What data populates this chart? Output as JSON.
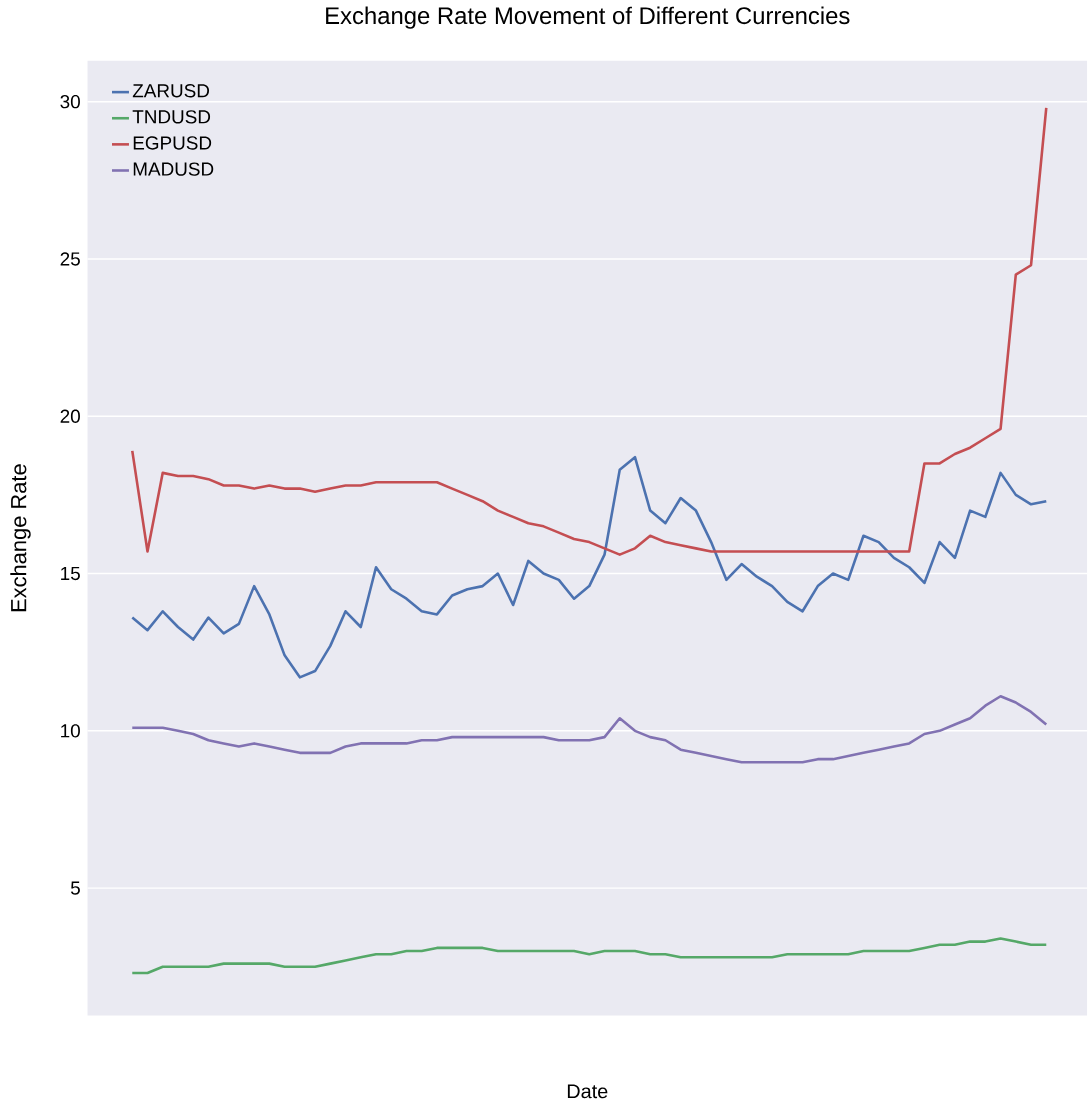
{
  "chart_data": {
    "type": "line",
    "title": "Exchange Rate Movement of Different Currencies",
    "xlabel": "Date",
    "ylabel": "Exchange Rate",
    "categories": [
      null,
      null,
      null,
      null,
      null,
      null,
      null,
      null,
      null,
      null,
      null,
      null,
      null,
      null,
      null,
      null,
      null,
      null,
      null,
      null,
      null,
      null,
      null,
      null,
      null,
      null,
      null,
      null,
      null,
      null,
      null,
      null,
      null,
      null,
      null,
      null,
      null,
      null,
      null,
      null,
      null,
      null,
      null,
      null,
      null,
      null,
      null,
      null,
      null,
      null,
      null,
      null,
      null,
      null,
      null,
      null,
      null,
      null,
      null,
      null,
      null
    ],
    "series": [
      {
        "name": "ZARUSD",
        "color": "#4c72b0",
        "values": [
          13.6,
          13.2,
          13.8,
          13.3,
          12.9,
          13.6,
          13.1,
          13.4,
          14.6,
          13.7,
          12.4,
          11.7,
          11.9,
          12.7,
          13.8,
          13.3,
          15.2,
          14.5,
          14.2,
          13.8,
          13.7,
          14.3,
          14.5,
          14.6,
          15.0,
          14.0,
          15.4,
          15.0,
          14.8,
          14.2,
          14.6,
          15.6,
          18.3,
          18.7,
          17.0,
          16.6,
          17.4,
          17.0,
          16.0,
          14.8,
          15.3,
          14.9,
          14.6,
          14.1,
          13.8,
          14.6,
          15.0,
          14.8,
          16.2,
          16.0,
          15.5,
          15.2,
          14.7,
          16.0,
          15.5,
          17.0,
          16.8,
          18.2,
          17.5,
          17.2,
          17.3
        ]
      },
      {
        "name": "TNDUSD",
        "color": "#55a868",
        "values": [
          2.3,
          2.3,
          2.5,
          2.5,
          2.5,
          2.5,
          2.6,
          2.6,
          2.6,
          2.6,
          2.5,
          2.5,
          2.5,
          2.6,
          2.7,
          2.8,
          2.9,
          2.9,
          3.0,
          3.0,
          3.1,
          3.1,
          3.1,
          3.1,
          3.0,
          3.0,
          3.0,
          3.0,
          3.0,
          3.0,
          2.9,
          3.0,
          3.0,
          3.0,
          2.9,
          2.9,
          2.8,
          2.8,
          2.8,
          2.8,
          2.8,
          2.8,
          2.8,
          2.9,
          2.9,
          2.9,
          2.9,
          2.9,
          3.0,
          3.0,
          3.0,
          3.0,
          3.1,
          3.2,
          3.2,
          3.3,
          3.3,
          3.4,
          3.3,
          3.2,
          3.2
        ]
      },
      {
        "name": "EGPUSD",
        "color": "#c44e52",
        "values": [
          18.9,
          15.7,
          18.2,
          18.1,
          18.1,
          18.0,
          17.8,
          17.8,
          17.7,
          17.8,
          17.7,
          17.7,
          17.6,
          17.7,
          17.8,
          17.8,
          17.9,
          17.9,
          17.9,
          17.9,
          17.9,
          17.7,
          17.5,
          17.3,
          17.0,
          16.8,
          16.6,
          16.5,
          16.3,
          16.1,
          16.0,
          15.8,
          15.6,
          15.8,
          16.2,
          16.0,
          15.9,
          15.8,
          15.7,
          15.7,
          15.7,
          15.7,
          15.7,
          15.7,
          15.7,
          15.7,
          15.7,
          15.7,
          15.7,
          15.7,
          15.7,
          15.7,
          18.5,
          18.5,
          18.8,
          19.0,
          19.3,
          19.6,
          24.5,
          24.8,
          29.8
        ]
      },
      {
        "name": "MADUSD",
        "color": "#8172b2",
        "values": [
          10.1,
          10.1,
          10.1,
          10.0,
          9.9,
          9.7,
          9.6,
          9.5,
          9.6,
          9.5,
          9.4,
          9.3,
          9.3,
          9.3,
          9.5,
          9.6,
          9.6,
          9.6,
          9.6,
          9.7,
          9.7,
          9.8,
          9.8,
          9.8,
          9.8,
          9.8,
          9.8,
          9.8,
          9.7,
          9.7,
          9.7,
          9.8,
          10.4,
          10.0,
          9.8,
          9.7,
          9.4,
          9.3,
          9.2,
          9.1,
          9.0,
          9.0,
          9.0,
          9.0,
          9.0,
          9.1,
          9.1,
          9.2,
          9.3,
          9.4,
          9.5,
          9.6,
          9.9,
          10.0,
          10.2,
          10.4,
          10.8,
          11.1,
          10.9,
          10.6,
          10.2
        ]
      }
    ],
    "ylim": [
      0.95,
      31.3
    ],
    "yticks": [
      5,
      10,
      15,
      20,
      25,
      30
    ],
    "grid": "y",
    "legend": "top left",
    "marker": "none",
    "line_style": "solid"
  }
}
